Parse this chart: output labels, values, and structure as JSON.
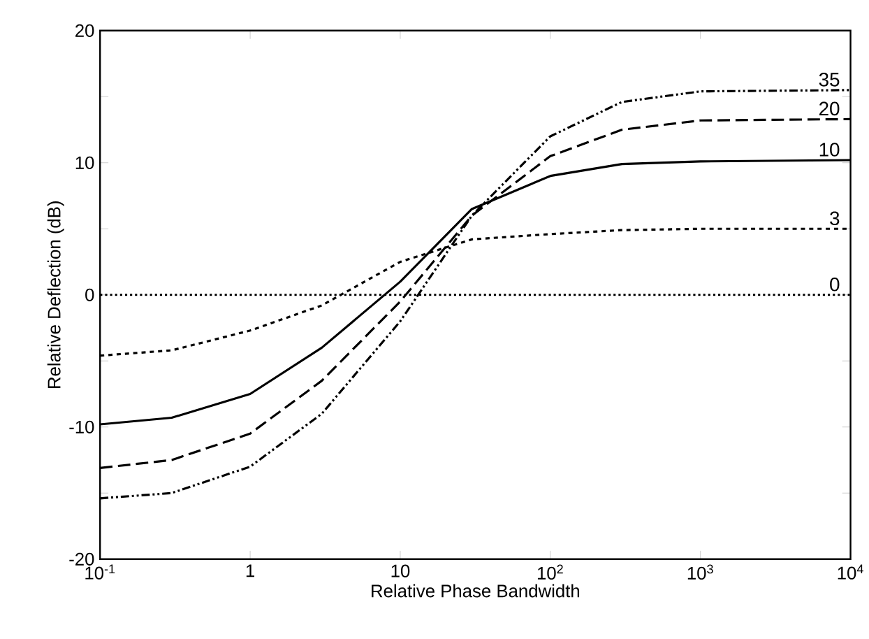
{
  "chart_data": {
    "type": "line",
    "xlabel": "Relative Phase Bandwidth",
    "ylabel": "Relative Deflection  (dB)",
    "log": "x",
    "x": [
      0.1,
      0.3,
      1,
      3,
      10,
      30,
      100,
      300,
      1000,
      10000
    ],
    "series": [
      {
        "name": "35",
        "color": "#000000",
        "line_style": "dashdotdot",
        "values": [
          -15.4,
          -15,
          -13,
          -9,
          -2,
          6,
          12,
          14.6,
          15.4,
          15.5
        ]
      },
      {
        "name": "20",
        "color": "#000000",
        "line_style": "longdashed",
        "values": [
          -13.1,
          -12.5,
          -10.5,
          -6.5,
          -0.5,
          6,
          10.5,
          12.5,
          13.2,
          13.3
        ]
      },
      {
        "name": "10",
        "color": "#000000",
        "line_style": "solid",
        "values": [
          -9.8,
          -9.3,
          -7.5,
          -4,
          1,
          6.5,
          9,
          9.9,
          10.1,
          10.2
        ]
      },
      {
        "name": "3",
        "color": "#000000",
        "line_style": "dashed",
        "values": [
          -4.6,
          -4.2,
          -2.7,
          -0.8,
          2.5,
          4.2,
          4.6,
          4.9,
          5,
          5
        ]
      },
      {
        "name": "0",
        "color": "#000000",
        "line_style": "dotted",
        "values": [
          0,
          0,
          0,
          0,
          0,
          0,
          0,
          0,
          0,
          0
        ]
      }
    ],
    "xlim": [
      0.1,
      10000
    ],
    "ylim": [
      -20,
      20
    ],
    "xticks": [
      {
        "value": 0.1,
        "label": "10$^{-1}$"
      },
      1,
      10,
      {
        "value": 100,
        "label": "10$^{2}$"
      },
      {
        "value": 1000,
        "label": "10$^{3}$"
      },
      {
        "value": 10000,
        "label": "10$^{4}$"
      }
    ],
    "yticks": [
      -20,
      {
        "value": -15,
        "label": null
      },
      -10,
      {
        "value": -5,
        "label": null
      },
      0,
      {
        "value": 5,
        "label": null
      },
      10,
      {
        "value": 15,
        "label": null
      },
      20
    ],
    "grid": false,
    "legend": false,
    "marker": "none"
  }
}
